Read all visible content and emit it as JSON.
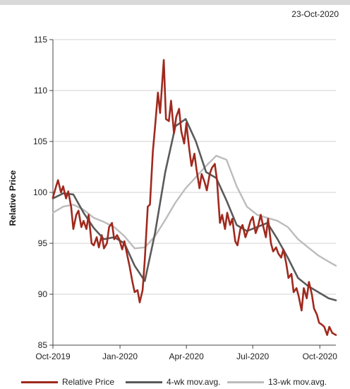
{
  "date_label": "23-Oct-2020",
  "chart_data": {
    "type": "line",
    "ylabel": "Relative Price",
    "xlabel": "",
    "ylim": [
      85,
      115
    ],
    "yticks": [
      85,
      90,
      95,
      100,
      105,
      110,
      115
    ],
    "xlim": [
      "2019-10-01",
      "2020-10-23"
    ],
    "xticks": [
      {
        "label": "Oct-2019",
        "date": "2019-10-01"
      },
      {
        "label": "Jan-2020",
        "date": "2020-01-01"
      },
      {
        "label": "Apr-2020",
        "date": "2020-04-01"
      },
      {
        "label": "Jul-2020",
        "date": "2020-07-01"
      },
      {
        "label": "Oct-2020",
        "date": "2020-10-01"
      }
    ],
    "grid": "horizontal",
    "legend_position": "bottom",
    "series": [
      {
        "name": "Relative Price",
        "color": "#a0291e",
        "points": [
          [
            "2019-10-01",
            99.5
          ],
          [
            "2019-10-05",
            100.5
          ],
          [
            "2019-10-08",
            101.2
          ],
          [
            "2019-10-12",
            100.0
          ],
          [
            "2019-10-15",
            100.6
          ],
          [
            "2019-10-19",
            99.4
          ],
          [
            "2019-10-22",
            100.1
          ],
          [
            "2019-10-26",
            98.6
          ],
          [
            "2019-10-29",
            96.4
          ],
          [
            "2019-11-02",
            97.8
          ],
          [
            "2019-11-05",
            98.2
          ],
          [
            "2019-11-09",
            96.6
          ],
          [
            "2019-11-12",
            97.2
          ],
          [
            "2019-11-16",
            96.4
          ],
          [
            "2019-11-19",
            97.8
          ],
          [
            "2019-11-23",
            95.0
          ],
          [
            "2019-11-26",
            94.8
          ],
          [
            "2019-11-30",
            95.6
          ],
          [
            "2019-12-03",
            94.6
          ],
          [
            "2019-12-07",
            95.8
          ],
          [
            "2019-12-10",
            94.5
          ],
          [
            "2019-12-14",
            95.0
          ],
          [
            "2019-12-17",
            96.6
          ],
          [
            "2019-12-21",
            97.0
          ],
          [
            "2019-12-24",
            95.4
          ],
          [
            "2019-12-28",
            95.8
          ],
          [
            "2019-12-31",
            95.4
          ],
          [
            "2020-01-04",
            94.4
          ],
          [
            "2020-01-07",
            95.2
          ],
          [
            "2020-01-11",
            93.8
          ],
          [
            "2020-01-14",
            92.8
          ],
          [
            "2020-01-18",
            91.2
          ],
          [
            "2020-01-21",
            90.2
          ],
          [
            "2020-01-25",
            90.4
          ],
          [
            "2020-01-28",
            89.2
          ],
          [
            "2020-02-01",
            90.4
          ],
          [
            "2020-02-04",
            93.4
          ],
          [
            "2020-02-08",
            98.6
          ],
          [
            "2020-02-11",
            98.8
          ],
          [
            "2020-02-15",
            104.0
          ],
          [
            "2020-02-18",
            106.4
          ],
          [
            "2020-02-22",
            109.8
          ],
          [
            "2020-02-25",
            107.8
          ],
          [
            "2020-03-01",
            113.0
          ],
          [
            "2020-03-04",
            107.2
          ],
          [
            "2020-03-08",
            107.0
          ],
          [
            "2020-03-11",
            109.0
          ],
          [
            "2020-03-15",
            105.8
          ],
          [
            "2020-03-18",
            107.4
          ],
          [
            "2020-03-22",
            108.2
          ],
          [
            "2020-03-25",
            106.0
          ],
          [
            "2020-03-29",
            104.8
          ],
          [
            "2020-04-01",
            106.8
          ],
          [
            "2020-04-05",
            104.2
          ],
          [
            "2020-04-08",
            102.6
          ],
          [
            "2020-04-12",
            103.8
          ],
          [
            "2020-04-15",
            102.2
          ],
          [
            "2020-04-19",
            100.4
          ],
          [
            "2020-04-22",
            101.8
          ],
          [
            "2020-04-26",
            101.0
          ],
          [
            "2020-04-29",
            100.2
          ],
          [
            "2020-05-03",
            101.8
          ],
          [
            "2020-05-06",
            102.4
          ],
          [
            "2020-05-10",
            102.8
          ],
          [
            "2020-05-13",
            101.2
          ],
          [
            "2020-05-17",
            97.0
          ],
          [
            "2020-05-20",
            97.8
          ],
          [
            "2020-05-24",
            96.4
          ],
          [
            "2020-05-27",
            98.0
          ],
          [
            "2020-05-31",
            96.8
          ],
          [
            "2020-06-03",
            97.4
          ],
          [
            "2020-06-07",
            95.2
          ],
          [
            "2020-06-10",
            94.8
          ],
          [
            "2020-06-14",
            96.4
          ],
          [
            "2020-06-17",
            96.8
          ],
          [
            "2020-06-21",
            95.6
          ],
          [
            "2020-06-24",
            96.2
          ],
          [
            "2020-06-28",
            97.2
          ],
          [
            "2020-07-01",
            97.6
          ],
          [
            "2020-07-05",
            96.0
          ],
          [
            "2020-07-08",
            96.6
          ],
          [
            "2020-07-12",
            97.8
          ],
          [
            "2020-07-15",
            96.8
          ],
          [
            "2020-07-19",
            95.6
          ],
          [
            "2020-07-22",
            97.4
          ],
          [
            "2020-07-26",
            95.0
          ],
          [
            "2020-07-29",
            94.2
          ],
          [
            "2020-08-02",
            94.6
          ],
          [
            "2020-08-05",
            94.0
          ],
          [
            "2020-08-09",
            93.6
          ],
          [
            "2020-08-12",
            94.4
          ],
          [
            "2020-08-16",
            93.0
          ],
          [
            "2020-08-19",
            91.6
          ],
          [
            "2020-08-23",
            92.0
          ],
          [
            "2020-08-26",
            90.2
          ],
          [
            "2020-08-30",
            90.6
          ],
          [
            "2020-09-02",
            89.8
          ],
          [
            "2020-09-06",
            88.4
          ],
          [
            "2020-09-09",
            90.6
          ],
          [
            "2020-09-13",
            89.6
          ],
          [
            "2020-09-16",
            91.2
          ],
          [
            "2020-09-20",
            90.0
          ],
          [
            "2020-09-23",
            88.6
          ],
          [
            "2020-09-27",
            88.0
          ],
          [
            "2020-09-30",
            87.2
          ],
          [
            "2020-10-04",
            87.0
          ],
          [
            "2020-10-07",
            86.8
          ],
          [
            "2020-10-11",
            86.0
          ],
          [
            "2020-10-14",
            86.8
          ],
          [
            "2020-10-18",
            86.2
          ],
          [
            "2020-10-23",
            86.0
          ]
        ]
      },
      {
        "name": "4-wk mov.avg.",
        "color": "#5a5a5a",
        "points": [
          [
            "2019-10-01",
            99.4
          ],
          [
            "2019-10-15",
            99.9
          ],
          [
            "2019-10-29",
            99.8
          ],
          [
            "2019-11-12",
            98.0
          ],
          [
            "2019-11-26",
            96.5
          ],
          [
            "2019-12-10",
            95.4
          ],
          [
            "2019-12-24",
            95.6
          ],
          [
            "2020-01-07",
            95.0
          ],
          [
            "2020-01-21",
            92.8
          ],
          [
            "2020-02-04",
            91.3
          ],
          [
            "2020-02-18",
            96.0
          ],
          [
            "2020-03-03",
            102.0
          ],
          [
            "2020-03-17",
            106.5
          ],
          [
            "2020-03-31",
            107.2
          ],
          [
            "2020-04-14",
            105.0
          ],
          [
            "2020-04-28",
            102.0
          ],
          [
            "2020-05-12",
            101.4
          ],
          [
            "2020-05-26",
            99.2
          ],
          [
            "2020-06-09",
            96.8
          ],
          [
            "2020-06-23",
            96.2
          ],
          [
            "2020-07-07",
            96.6
          ],
          [
            "2020-07-21",
            97.0
          ],
          [
            "2020-08-04",
            95.4
          ],
          [
            "2020-08-18",
            93.6
          ],
          [
            "2020-09-01",
            91.6
          ],
          [
            "2020-09-15",
            90.8
          ],
          [
            "2020-09-29",
            90.2
          ],
          [
            "2020-10-13",
            89.6
          ],
          [
            "2020-10-23",
            89.4
          ]
        ]
      },
      {
        "name": "13-wk mov.avg.",
        "color": "#bcbcbc",
        "points": [
          [
            "2019-10-01",
            98.0
          ],
          [
            "2019-10-15",
            98.6
          ],
          [
            "2019-10-29",
            98.8
          ],
          [
            "2019-11-12",
            98.3
          ],
          [
            "2019-11-26",
            97.5
          ],
          [
            "2019-12-10",
            97.1
          ],
          [
            "2019-12-24",
            96.6
          ],
          [
            "2020-01-07",
            95.7
          ],
          [
            "2020-01-21",
            94.5
          ],
          [
            "2020-02-04",
            94.6
          ],
          [
            "2020-02-18",
            95.7
          ],
          [
            "2020-03-03",
            97.3
          ],
          [
            "2020-03-17",
            99.0
          ],
          [
            "2020-03-31",
            100.4
          ],
          [
            "2020-04-14",
            101.5
          ],
          [
            "2020-04-28",
            102.6
          ],
          [
            "2020-05-12",
            103.6
          ],
          [
            "2020-05-26",
            103.2
          ],
          [
            "2020-06-09",
            100.6
          ],
          [
            "2020-06-23",
            98.6
          ],
          [
            "2020-07-07",
            97.8
          ],
          [
            "2020-07-21",
            97.5
          ],
          [
            "2020-08-04",
            97.2
          ],
          [
            "2020-08-18",
            96.6
          ],
          [
            "2020-09-01",
            95.4
          ],
          [
            "2020-09-15",
            94.6
          ],
          [
            "2020-09-29",
            93.8
          ],
          [
            "2020-10-13",
            93.2
          ],
          [
            "2020-10-23",
            92.8
          ]
        ]
      }
    ]
  }
}
